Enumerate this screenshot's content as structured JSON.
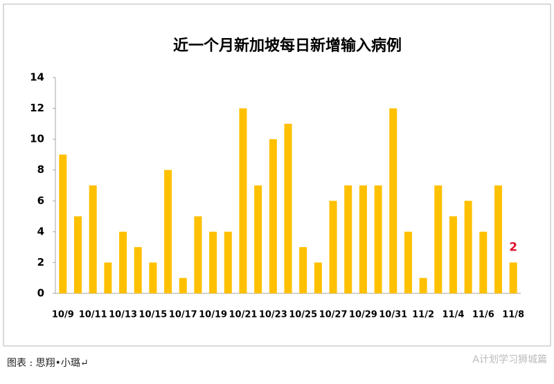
{
  "chart_data": {
    "type": "bar",
    "title": "近一个月新加坡每日新增输入病例",
    "categories": [
      "10/9",
      null,
      "10/11",
      null,
      "10/13",
      null,
      "10/15",
      null,
      "10/17",
      null,
      "10/19",
      null,
      "10/21",
      null,
      "10/23",
      null,
      "10/25",
      null,
      "10/27",
      null,
      "10/29",
      null,
      "10/31",
      null,
      "11/2",
      null,
      "11/4",
      null,
      "11/6",
      null,
      "11/8"
    ],
    "values": [
      9,
      5,
      7,
      2,
      4,
      3,
      2,
      8,
      1,
      5,
      4,
      4,
      12,
      7,
      10,
      11,
      3,
      2,
      6,
      7,
      7,
      7,
      12,
      4,
      1,
      7,
      5,
      6,
      4,
      7,
      2
    ],
    "color": "#ffc000",
    "label_color": "#e0102a",
    "ylim": [
      0,
      14
    ],
    "yticks": [
      0,
      2,
      4,
      6,
      8,
      10,
      12,
      14
    ],
    "grid": false
  },
  "caption": "图表 : 思翔•小璐↵",
  "watermark": "A计划学习狮城篇"
}
